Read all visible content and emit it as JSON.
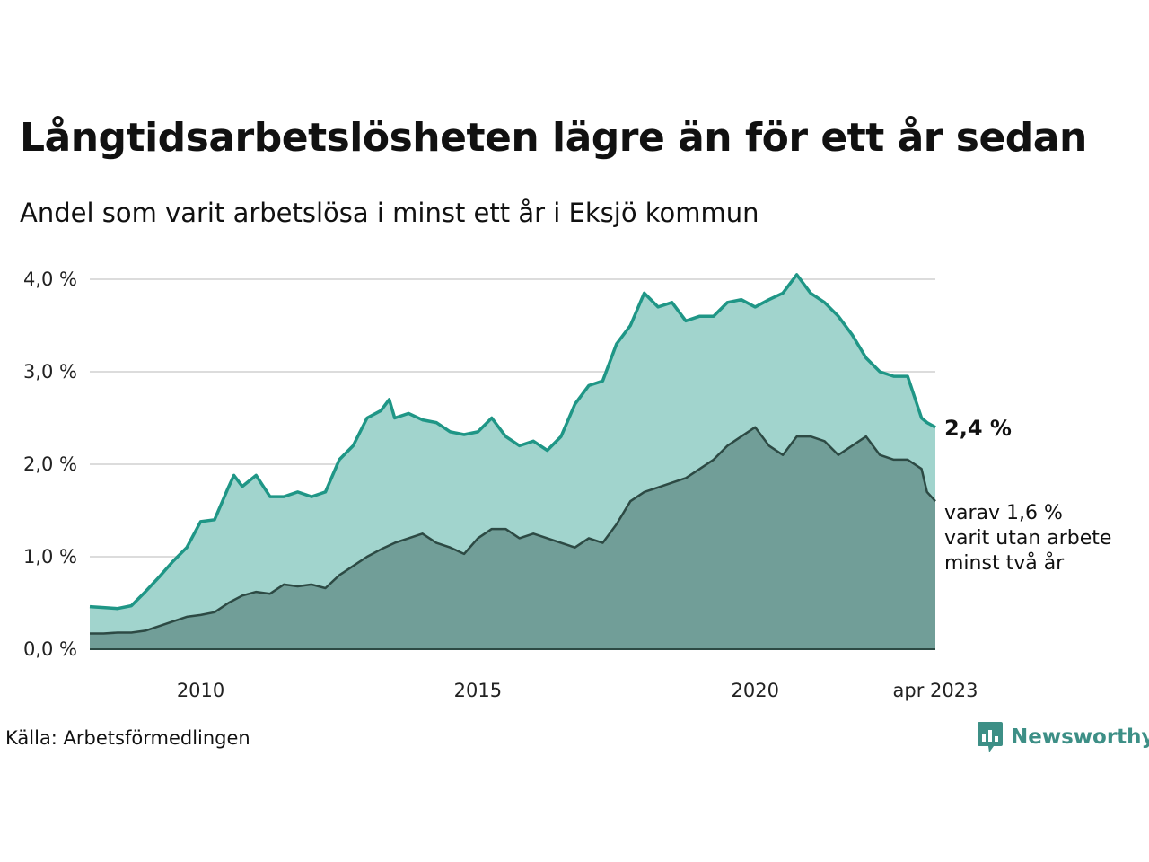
{
  "title": "Långtidsarbetslösheten lägre än för ett år sedan",
  "subtitle": "Andel som varit arbetslösa i minst ett år i Eksjö kommun",
  "source": "Källa: Arbetsförmedlingen",
  "brand": {
    "name": "Newsworthy",
    "icon": "newsworthy-logo-icon",
    "color": "#3d8f86"
  },
  "chart_data": {
    "type": "area",
    "ylim": [
      0,
      4.0
    ],
    "yticks": [
      {
        "value": 0,
        "label": "0,0 %"
      },
      {
        "value": 1,
        "label": "1,0 %"
      },
      {
        "value": 2,
        "label": "2,0 %"
      },
      {
        "value": 3,
        "label": "3,0 %"
      },
      {
        "value": 4,
        "label": "4,0 %"
      }
    ],
    "xrange": [
      2008.0,
      2023.25
    ],
    "xticks": [
      {
        "value": 2010,
        "label": "2010"
      },
      {
        "value": 2015,
        "label": "2015"
      },
      {
        "value": 2020,
        "label": "2020"
      },
      {
        "value": 2023.25,
        "label": "apr 2023"
      }
    ],
    "end_labels": {
      "total": "2,4 %",
      "sub": [
        "varav 1,6 %",
        "varit utan arbete",
        "minst två år"
      ]
    },
    "colors": {
      "total_line": "#1f9686",
      "total_fill": "#a1d4cd",
      "sub_line": "#2d4a44",
      "sub_fill": "#719e98"
    },
    "series": [
      {
        "x": [
          2008.0,
          2008.25,
          2008.5,
          2008.75,
          2009.0,
          2009.25,
          2009.5,
          2009.75,
          2010.0,
          2010.25,
          2010.5,
          2010.6,
          2010.75,
          2011.0,
          2011.25,
          2011.5,
          2011.75,
          2012.0,
          2012.25,
          2012.5,
          2012.75,
          2013.0,
          2013.25,
          2013.4,
          2013.5,
          2013.75,
          2014.0,
          2014.25,
          2014.5,
          2014.75,
          2015.0,
          2015.25,
          2015.5,
          2015.75,
          2016.0,
          2016.25,
          2016.5,
          2016.75,
          2017.0,
          2017.25,
          2017.5,
          2017.75,
          2018.0,
          2018.25,
          2018.5,
          2018.75,
          2019.0,
          2019.25,
          2019.5,
          2019.75,
          2020.0,
          2020.25,
          2020.5,
          2020.75,
          2021.0,
          2021.25,
          2021.5,
          2021.75,
          2022.0,
          2022.25,
          2022.5,
          2022.75,
          2023.0,
          2023.1,
          2023.25
        ],
        "values": [
          0.46,
          0.45,
          0.44,
          0.47,
          0.62,
          0.78,
          0.95,
          1.1,
          1.38,
          1.4,
          1.75,
          1.88,
          1.76,
          1.88,
          1.65,
          1.65,
          1.7,
          1.65,
          1.7,
          2.05,
          2.2,
          2.5,
          2.58,
          2.7,
          2.5,
          2.55,
          2.48,
          2.45,
          2.35,
          2.32,
          2.35,
          2.5,
          2.3,
          2.2,
          2.25,
          2.15,
          2.3,
          2.65,
          2.85,
          2.9,
          3.3,
          3.5,
          3.85,
          3.7,
          3.75,
          3.55,
          3.6,
          3.6,
          3.75,
          3.78,
          3.7,
          3.78,
          3.85,
          4.05,
          3.85,
          3.75,
          3.6,
          3.4,
          3.15,
          3.0,
          2.95,
          2.95,
          2.5,
          2.45,
          2.4
        ]
      },
      {
        "x": [
          2008.0,
          2008.25,
          2008.5,
          2008.75,
          2009.0,
          2009.25,
          2009.5,
          2009.75,
          2010.0,
          2010.25,
          2010.5,
          2010.75,
          2011.0,
          2011.25,
          2011.5,
          2011.75,
          2012.0,
          2012.25,
          2012.5,
          2012.75,
          2013.0,
          2013.25,
          2013.5,
          2013.75,
          2014.0,
          2014.25,
          2014.5,
          2014.75,
          2015.0,
          2015.25,
          2015.5,
          2015.75,
          2016.0,
          2016.25,
          2016.5,
          2016.75,
          2017.0,
          2017.25,
          2017.5,
          2017.75,
          2018.0,
          2018.25,
          2018.5,
          2018.75,
          2019.0,
          2019.25,
          2019.5,
          2019.75,
          2020.0,
          2020.25,
          2020.5,
          2020.75,
          2021.0,
          2021.25,
          2021.5,
          2021.75,
          2022.0,
          2022.25,
          2022.5,
          2022.75,
          2023.0,
          2023.1,
          2023.25
        ],
        "values": [
          0.17,
          0.17,
          0.18,
          0.18,
          0.2,
          0.25,
          0.3,
          0.35,
          0.37,
          0.4,
          0.5,
          0.58,
          0.62,
          0.6,
          0.7,
          0.68,
          0.7,
          0.66,
          0.8,
          0.9,
          1.0,
          1.08,
          1.15,
          1.2,
          1.25,
          1.15,
          1.1,
          1.03,
          1.2,
          1.3,
          1.3,
          1.2,
          1.25,
          1.2,
          1.15,
          1.1,
          1.2,
          1.15,
          1.35,
          1.6,
          1.7,
          1.75,
          1.8,
          1.85,
          1.95,
          2.05,
          2.2,
          2.3,
          2.4,
          2.2,
          2.1,
          2.3,
          2.3,
          2.25,
          2.1,
          2.2,
          2.3,
          2.1,
          2.05,
          2.05,
          1.95,
          1.7,
          1.6
        ]
      }
    ]
  }
}
